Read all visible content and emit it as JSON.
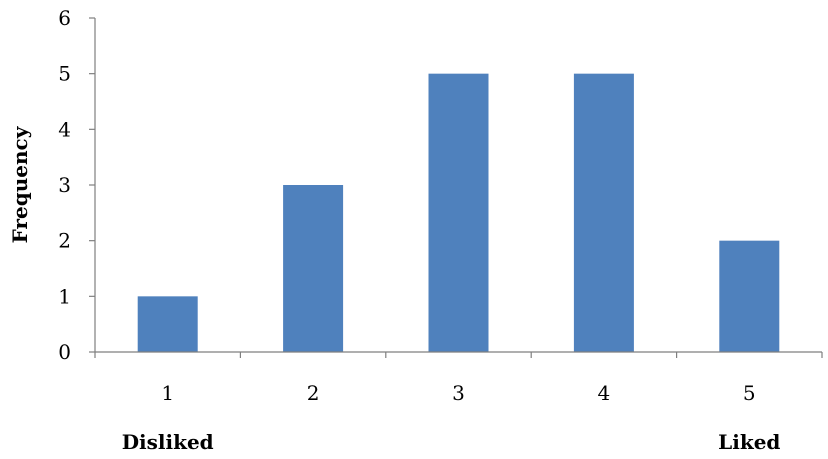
{
  "chart_data": {
    "type": "bar",
    "categories": [
      "1",
      "2",
      "3",
      "4",
      "5"
    ],
    "values": [
      1,
      3,
      5,
      5,
      2
    ],
    "title": "",
    "xlabel": "",
    "ylabel": "Frequency",
    "ylim": [
      0,
      6
    ],
    "y_ticks": [
      "0",
      "1",
      "2",
      "3",
      "4",
      "5",
      "6"
    ],
    "x_annotations": {
      "left": "Disliked",
      "right": "Liked"
    },
    "bar_color": "#4f81bd",
    "axis_color": "#7f7f7f",
    "grid": false,
    "legend": "none"
  }
}
